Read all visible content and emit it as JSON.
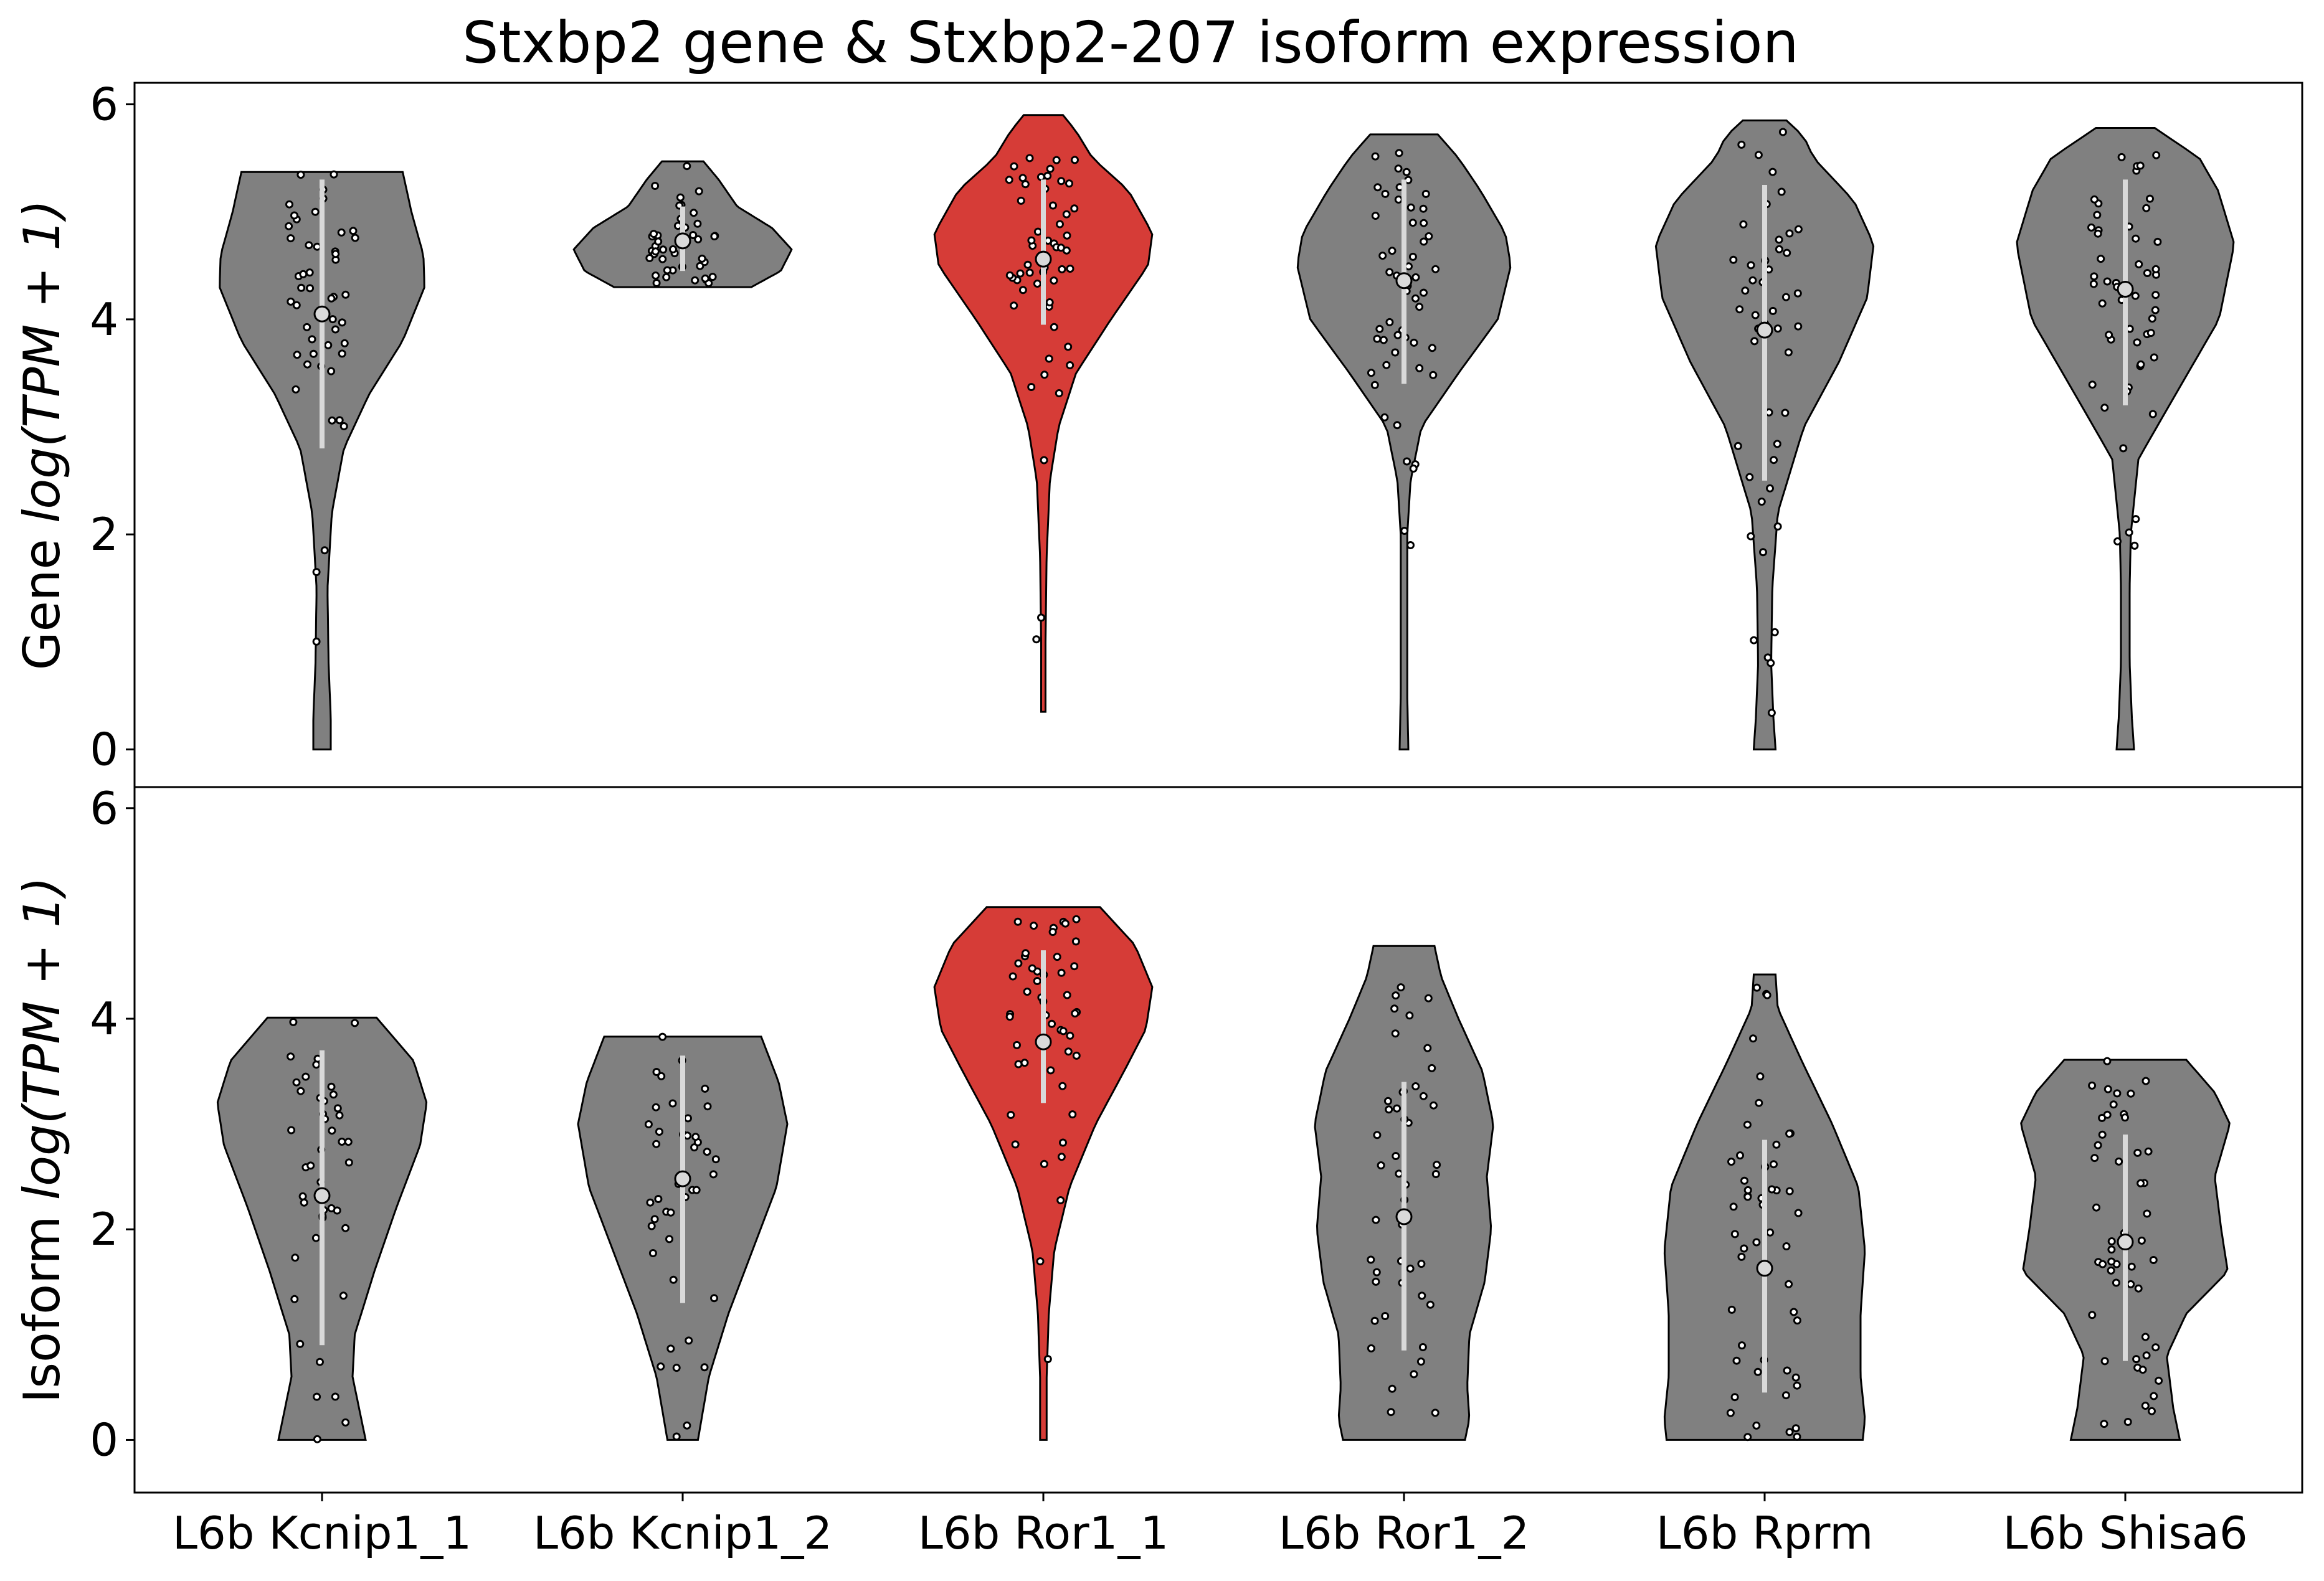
{
  "chart_data": {
    "type": "violin",
    "title": "Stxbp2 gene & Stxbp2-207 isoform expression",
    "categories": [
      "L6b Kcnip1_1",
      "L6b Kcnip1_2",
      "L6b Ror1_1",
      "L6b Ror1_2",
      "L6b Rprm",
      "L6b Shisa6"
    ],
    "highlight_category": "L6b Ror1_1",
    "colors": {
      "default": "#808080",
      "highlight": "#d63c37",
      "median_marker": "#d9d9d9",
      "iqr_line": "#d9d9d9"
    },
    "panels": [
      {
        "name": "Gene",
        "ylabel_prefix": "Gene ",
        "ylabel_math": "log(TPM + 1)",
        "ylim": [
          -0.35,
          6.2
        ],
        "yticks": [
          0,
          2,
          4,
          6
        ],
        "violins": [
          {
            "category": "L6b Kcnip1_1",
            "min": 0.0,
            "max": 5.37,
            "median": 4.05,
            "q1": 2.8,
            "q3": 5.3,
            "profile": [
              [
                0.0,
                0.08
              ],
              [
                0.3,
                0.08
              ],
              [
                0.8,
                0.06
              ],
              [
                1.5,
                0.05
              ],
              [
                2.2,
                0.09
              ],
              [
                2.8,
                0.2
              ],
              [
                3.3,
                0.43
              ],
              [
                3.8,
                0.74
              ],
              [
                4.3,
                0.94
              ],
              [
                4.6,
                0.93
              ],
              [
                5.0,
                0.82
              ],
              [
                5.37,
                0.74
              ]
            ]
          },
          {
            "category": "L6b Kcnip1_2",
            "min": 4.3,
            "max": 5.47,
            "median": 4.73,
            "q1": 4.45,
            "q3": 5.05,
            "profile": [
              [
                4.3,
                0.63
              ],
              [
                4.45,
                0.9
              ],
              [
                4.65,
                1.0
              ],
              [
                4.85,
                0.82
              ],
              [
                5.05,
                0.5
              ],
              [
                5.3,
                0.33
              ],
              [
                5.47,
                0.19
              ]
            ]
          },
          {
            "category": "L6b Ror1_1",
            "min": 0.35,
            "max": 5.9,
            "median": 4.56,
            "q1": 3.95,
            "q3": 5.3,
            "profile": [
              [
                0.35,
                0.02
              ],
              [
                1.0,
                0.02
              ],
              [
                1.8,
                0.03
              ],
              [
                2.5,
                0.06
              ],
              [
                3.0,
                0.14
              ],
              [
                3.5,
                0.3
              ],
              [
                4.0,
                0.62
              ],
              [
                4.5,
                0.96
              ],
              [
                4.8,
                1.0
              ],
              [
                5.2,
                0.78
              ],
              [
                5.5,
                0.45
              ],
              [
                5.75,
                0.3
              ],
              [
                5.9,
                0.18
              ]
            ]
          },
          {
            "category": "L6b Ror1_2",
            "min": 0.0,
            "max": 5.72,
            "median": 4.36,
            "q1": 3.4,
            "q3": 5.3,
            "profile": [
              [
                0.0,
                0.04
              ],
              [
                0.5,
                0.03
              ],
              [
                1.0,
                0.03
              ],
              [
                1.5,
                0.03
              ],
              [
                2.0,
                0.03
              ],
              [
                2.5,
                0.06
              ],
              [
                3.0,
                0.16
              ],
              [
                3.5,
                0.5
              ],
              [
                4.0,
                0.86
              ],
              [
                4.5,
                0.98
              ],
              [
                4.8,
                0.93
              ],
              [
                5.2,
                0.7
              ],
              [
                5.5,
                0.5
              ],
              [
                5.72,
                0.31
              ]
            ]
          },
          {
            "category": "L6b Rprm",
            "min": 0.0,
            "max": 5.85,
            "median": 3.9,
            "q1": 2.5,
            "q3": 5.25,
            "profile": [
              [
                0.0,
                0.1
              ],
              [
                0.3,
                0.08
              ],
              [
                0.8,
                0.06
              ],
              [
                1.5,
                0.07
              ],
              [
                2.2,
                0.12
              ],
              [
                3.0,
                0.36
              ],
              [
                3.6,
                0.68
              ],
              [
                4.2,
                0.94
              ],
              [
                4.7,
                1.0
              ],
              [
                5.1,
                0.82
              ],
              [
                5.5,
                0.45
              ],
              [
                5.7,
                0.36
              ],
              [
                5.85,
                0.2
              ]
            ]
          },
          {
            "category": "L6b Shisa6",
            "min": 0.0,
            "max": 5.78,
            "median": 4.28,
            "q1": 3.2,
            "q3": 5.3,
            "profile": [
              [
                0.0,
                0.08
              ],
              [
                0.3,
                0.06
              ],
              [
                0.8,
                0.04
              ],
              [
                1.5,
                0.04
              ],
              [
                2.0,
                0.05
              ],
              [
                2.7,
                0.12
              ],
              [
                3.3,
                0.46
              ],
              [
                4.0,
                0.86
              ],
              [
                4.7,
                1.0
              ],
              [
                5.2,
                0.85
              ],
              [
                5.5,
                0.68
              ],
              [
                5.78,
                0.27
              ]
            ]
          }
        ]
      },
      {
        "name": "Isoform",
        "ylabel_prefix": "Isoform ",
        "ylabel_math": "log(TPM + 1)",
        "ylim": [
          -0.5,
          6.2
        ],
        "yticks": [
          0,
          2,
          4,
          6
        ],
        "violins": [
          {
            "category": "L6b Kcnip1_1",
            "min": 0.0,
            "max": 4.01,
            "median": 2.32,
            "q1": 0.9,
            "q3": 3.7,
            "profile": [
              [
                0.0,
                0.4
              ],
              [
                0.2,
                0.36
              ],
              [
                0.6,
                0.28
              ],
              [
                1.0,
                0.3
              ],
              [
                1.6,
                0.48
              ],
              [
                2.2,
                0.68
              ],
              [
                2.8,
                0.9
              ],
              [
                3.2,
                0.96
              ],
              [
                3.6,
                0.84
              ],
              [
                4.01,
                0.5
              ]
            ]
          },
          {
            "category": "L6b Kcnip1_2",
            "min": 0.0,
            "max": 3.83,
            "median": 2.48,
            "q1": 1.3,
            "q3": 3.65,
            "profile": [
              [
                0.0,
                0.14
              ],
              [
                0.6,
                0.24
              ],
              [
                1.2,
                0.42
              ],
              [
                1.8,
                0.64
              ],
              [
                2.4,
                0.86
              ],
              [
                3.0,
                0.96
              ],
              [
                3.4,
                0.88
              ],
              [
                3.83,
                0.72
              ]
            ]
          },
          {
            "category": "L6b Ror1_1",
            "min": 0.0,
            "max": 5.06,
            "median": 3.78,
            "q1": 3.2,
            "q3": 4.65,
            "profile": [
              [
                0.0,
                0.03
              ],
              [
                0.6,
                0.03
              ],
              [
                1.2,
                0.05
              ],
              [
                1.8,
                0.1
              ],
              [
                2.4,
                0.24
              ],
              [
                3.0,
                0.48
              ],
              [
                3.5,
                0.74
              ],
              [
                3.9,
                0.94
              ],
              [
                4.3,
                1.0
              ],
              [
                4.7,
                0.84
              ],
              [
                5.06,
                0.52
              ]
            ]
          },
          {
            "category": "L6b Ror1_2",
            "min": 0.0,
            "max": 4.69,
            "median": 2.12,
            "q1": 0.85,
            "q3": 3.4,
            "profile": [
              [
                0.0,
                0.56
              ],
              [
                0.2,
                0.6
              ],
              [
                0.5,
                0.58
              ],
              [
                1.0,
                0.6
              ],
              [
                1.5,
                0.74
              ],
              [
                2.0,
                0.8
              ],
              [
                2.5,
                0.76
              ],
              [
                3.0,
                0.82
              ],
              [
                3.5,
                0.72
              ],
              [
                4.0,
                0.5
              ],
              [
                4.4,
                0.34
              ],
              [
                4.69,
                0.28
              ]
            ]
          },
          {
            "category": "L6b Rprm",
            "min": 0.0,
            "max": 4.42,
            "median": 1.63,
            "q1": 0.45,
            "q3": 2.85,
            "profile": [
              [
                0.0,
                0.9
              ],
              [
                0.2,
                0.92
              ],
              [
                0.6,
                0.88
              ],
              [
                1.2,
                0.88
              ],
              [
                1.8,
                0.92
              ],
              [
                2.4,
                0.86
              ],
              [
                3.0,
                0.62
              ],
              [
                3.6,
                0.34
              ],
              [
                4.1,
                0.12
              ],
              [
                4.42,
                0.1
              ]
            ]
          },
          {
            "category": "L6b Shisa6",
            "min": 0.0,
            "max": 3.61,
            "median": 1.88,
            "q1": 0.75,
            "q3": 2.9,
            "profile": [
              [
                0.0,
                0.5
              ],
              [
                0.3,
                0.44
              ],
              [
                0.8,
                0.38
              ],
              [
                1.2,
                0.56
              ],
              [
                1.6,
                0.94
              ],
              [
                2.0,
                0.88
              ],
              [
                2.5,
                0.82
              ],
              [
                3.0,
                0.96
              ],
              [
                3.3,
                0.82
              ],
              [
                3.61,
                0.56
              ]
            ]
          }
        ]
      }
    ]
  }
}
